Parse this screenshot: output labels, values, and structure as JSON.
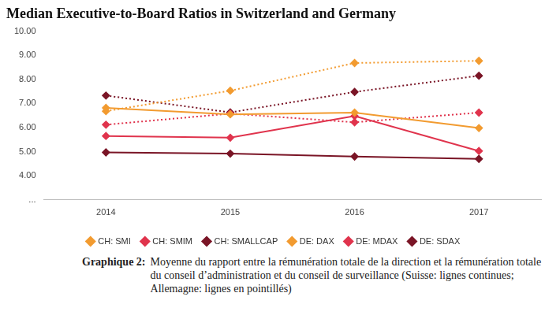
{
  "chart_data": {
    "type": "line",
    "title": "Median Executive-to-Board Ratios in Switzerland and Germany",
    "categories": [
      "2014",
      "2015",
      "2016",
      "2017"
    ],
    "series": [
      {
        "name": "CH: SMI",
        "color": "#f29b30",
        "line_style": "solid",
        "marker": "diamond",
        "values": [
          6.82,
          6.55,
          6.62,
          5.98
        ]
      },
      {
        "name": "CH: SMIM",
        "color": "#e0344d",
        "line_style": "solid",
        "marker": "diamond",
        "values": [
          5.65,
          5.58,
          6.48,
          5.03
        ]
      },
      {
        "name": "CH: SMALLCAP",
        "color": "#7a1526",
        "line_style": "solid",
        "marker": "diamond",
        "values": [
          4.97,
          4.92,
          4.8,
          4.7
        ]
      },
      {
        "name": "DE: DAX",
        "color": "#f29b30",
        "line_style": "dotted",
        "marker": "diamond",
        "values": [
          6.68,
          7.53,
          8.68,
          8.77
        ]
      },
      {
        "name": "DE: MDAX",
        "color": "#e0344d",
        "line_style": "dotted",
        "marker": "diamond",
        "values": [
          6.12,
          6.58,
          6.22,
          6.62
        ]
      },
      {
        "name": "DE: SDAX",
        "color": "#7a1526",
        "line_style": "dotted",
        "marker": "diamond",
        "values": [
          7.33,
          6.63,
          7.48,
          8.15
        ]
      }
    ],
    "ylim": [
      3,
      10
    ],
    "yticks": [
      {
        "value": 3,
        "label": "..."
      },
      {
        "value": 4,
        "label": "4.00"
      },
      {
        "value": 5,
        "label": "5.00"
      },
      {
        "value": 6,
        "label": "6.00"
      },
      {
        "value": 7,
        "label": "7.00"
      },
      {
        "value": 8,
        "label": "8.00"
      },
      {
        "value": 9,
        "label": "9.00"
      },
      {
        "value": 10,
        "label": "10.00"
      }
    ],
    "grid": false,
    "legend": "bottom",
    "caption": {
      "label": "Graphique 2:",
      "text": "Moyenne du rapport entre la rémunération totale de la direction et la rémunération totale du conseil d’administration et du conseil de surveillance (Suisse: lignes continues; Allemagne: lignes en pointillés)"
    }
  }
}
